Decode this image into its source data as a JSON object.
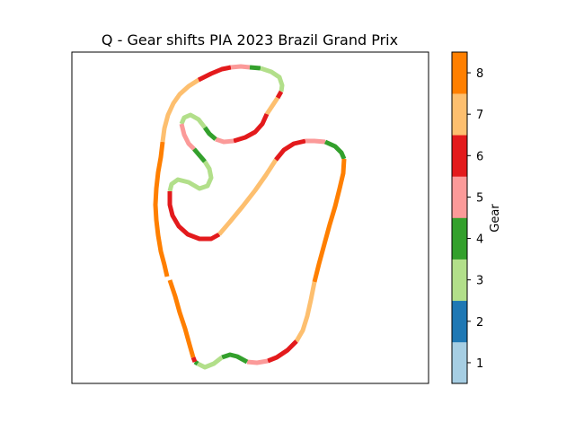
{
  "chart_data": {
    "type": "scatter",
    "title": "Q - Gear shifts PIA 2023 Brazil Grand Prix",
    "xlabel": "",
    "ylabel": "",
    "axes_visible": false,
    "colorbar": {
      "label": "Gear",
      "ticks": [
        1,
        2,
        3,
        4,
        5,
        6,
        7,
        8
      ],
      "range": [
        0.5,
        8.5
      ],
      "colors": [
        "#a6cee3",
        "#1f78b4",
        "#b2df8a",
        "#33a02c",
        "#fb9a99",
        "#e31a1c",
        "#fdbf6f",
        "#ff7f00"
      ]
    },
    "series": [
      {
        "gear": 8,
        "track": [
          [
            186,
            308
          ],
          [
            183,
            295
          ],
          [
            179,
            280
          ],
          [
            176,
            262
          ],
          [
            174,
            245
          ],
          [
            173,
            228
          ],
          [
            174,
            210
          ],
          [
            176,
            192
          ],
          [
            179,
            175
          ],
          [
            181,
            158
          ]
        ]
      },
      {
        "gear": 7,
        "track": [
          [
            181,
            158
          ],
          [
            183,
            143
          ],
          [
            187,
            128
          ],
          [
            193,
            115
          ],
          [
            200,
            105
          ],
          [
            210,
            96
          ],
          [
            221,
            89
          ]
        ]
      },
      {
        "gear": 6,
        "track": [
          [
            221,
            89
          ],
          [
            235,
            82
          ],
          [
            247,
            77
          ],
          [
            257,
            75
          ]
        ]
      },
      {
        "gear": 5,
        "track": [
          [
            257,
            75
          ],
          [
            268,
            74
          ],
          [
            278,
            75
          ]
        ]
      },
      {
        "gear": 4,
        "track": [
          [
            278,
            75
          ],
          [
            290,
            76
          ]
        ]
      },
      {
        "gear": 3,
        "track": [
          [
            290,
            76
          ],
          [
            302,
            80
          ],
          [
            311,
            86
          ],
          [
            314,
            95
          ],
          [
            313,
            102
          ]
        ]
      },
      {
        "gear": 6,
        "track": [
          [
            313,
            102
          ],
          [
            309,
            109
          ]
        ]
      },
      {
        "gear": 7,
        "track": [
          [
            309,
            109
          ],
          [
            303,
            118
          ],
          [
            297,
            127
          ]
        ]
      },
      {
        "gear": 6,
        "track": [
          [
            297,
            127
          ],
          [
            292,
            138
          ],
          [
            284,
            147
          ],
          [
            273,
            153
          ],
          [
            260,
            157
          ]
        ]
      },
      {
        "gear": 5,
        "track": [
          [
            260,
            157
          ],
          [
            249,
            158
          ],
          [
            240,
            155
          ]
        ]
      },
      {
        "gear": 4,
        "track": [
          [
            240,
            155
          ],
          [
            233,
            149
          ],
          [
            228,
            142
          ]
        ]
      },
      {
        "gear": 3,
        "track": [
          [
            228,
            142
          ],
          [
            221,
            133
          ],
          [
            212,
            128
          ],
          [
            205,
            131
          ],
          [
            202,
            138
          ]
        ]
      },
      {
        "gear": 5,
        "track": [
          [
            202,
            138
          ],
          [
            205,
            150
          ],
          [
            210,
            160
          ],
          [
            216,
            166
          ]
        ]
      },
      {
        "gear": 4,
        "track": [
          [
            216,
            166
          ],
          [
            222,
            173
          ],
          [
            228,
            180
          ]
        ]
      },
      {
        "gear": 3,
        "track": [
          [
            228,
            180
          ],
          [
            233,
            188
          ],
          [
            235,
            198
          ],
          [
            231,
            207
          ],
          [
            222,
            210
          ],
          [
            210,
            203
          ],
          [
            198,
            200
          ],
          [
            191,
            205
          ],
          [
            189,
            213
          ]
        ]
      },
      {
        "gear": 6,
        "track": [
          [
            189,
            213
          ],
          [
            189,
            228
          ],
          [
            192,
            240
          ],
          [
            199,
            252
          ],
          [
            209,
            261
          ],
          [
            222,
            266
          ],
          [
            235,
            266
          ],
          [
            244,
            261
          ]
        ]
      },
      {
        "gear": 7,
        "track": [
          [
            244,
            261
          ],
          [
            256,
            247
          ],
          [
            270,
            230
          ],
          [
            284,
            212
          ],
          [
            296,
            195
          ],
          [
            307,
            178
          ]
        ]
      },
      {
        "gear": 6,
        "track": [
          [
            307,
            178
          ],
          [
            316,
            167
          ],
          [
            327,
            160
          ],
          [
            340,
            157
          ]
        ]
      },
      {
        "gear": 5,
        "track": [
          [
            340,
            157
          ],
          [
            350,
            157
          ],
          [
            362,
            158
          ]
        ]
      },
      {
        "gear": 4,
        "track": [
          [
            362,
            158
          ],
          [
            373,
            163
          ],
          [
            380,
            170
          ],
          [
            383,
            177
          ]
        ]
      },
      {
        "gear": 8,
        "track": [
          [
            383,
            177
          ],
          [
            382,
            193
          ],
          [
            378,
            210
          ],
          [
            373,
            230
          ],
          [
            367,
            250
          ],
          [
            361,
            272
          ],
          [
            355,
            294
          ],
          [
            350,
            314
          ]
        ]
      },
      {
        "gear": 7,
        "track": [
          [
            350,
            314
          ],
          [
            346,
            334
          ],
          [
            342,
            352
          ],
          [
            337,
            368
          ],
          [
            330,
            380
          ]
        ]
      },
      {
        "gear": 6,
        "track": [
          [
            330,
            380
          ],
          [
            320,
            390
          ],
          [
            308,
            398
          ],
          [
            298,
            402
          ]
        ]
      },
      {
        "gear": 5,
        "track": [
          [
            298,
            402
          ],
          [
            286,
            404
          ],
          [
            275,
            403
          ]
        ]
      },
      {
        "gear": 4,
        "track": [
          [
            275,
            403
          ],
          [
            264,
            397
          ],
          [
            256,
            395
          ],
          [
            247,
            398
          ]
        ]
      },
      {
        "gear": 3,
        "track": [
          [
            247,
            398
          ],
          [
            238,
            405
          ],
          [
            228,
            409
          ],
          [
            220,
            405
          ]
        ]
      },
      {
        "gear": 4,
        "track": [
          [
            220,
            405
          ],
          [
            217,
            403
          ]
        ]
      },
      {
        "gear": 6,
        "track": [
          [
            217,
            403
          ],
          [
            215,
            398
          ]
        ]
      },
      {
        "gear": 8,
        "track": [
          [
            215,
            398
          ],
          [
            211,
            384
          ],
          [
            206,
            366
          ],
          [
            200,
            348
          ],
          [
            195,
            330
          ],
          [
            189,
            312
          ]
        ]
      }
    ]
  }
}
